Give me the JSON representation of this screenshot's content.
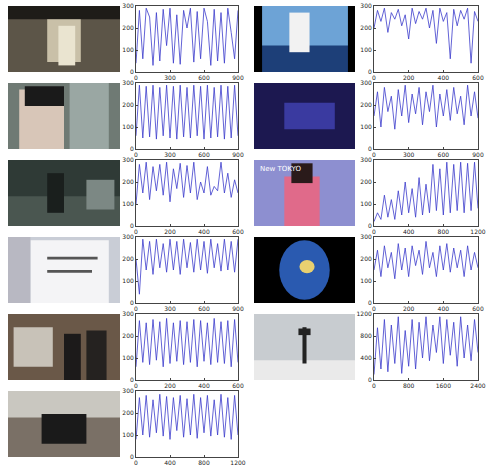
{
  "chart_data": [
    {
      "type": "line",
      "color": "#3b3bcc",
      "xlim": [
        0,
        900
      ],
      "xticks": [
        0,
        300,
        600,
        900
      ],
      "ylim": [
        0,
        300
      ],
      "yticks": [
        0,
        100,
        200,
        300
      ],
      "x": [
        0,
        30,
        60,
        90,
        120,
        150,
        180,
        210,
        240,
        270,
        300,
        330,
        360,
        390,
        420,
        450,
        480,
        510,
        540,
        570,
        600,
        630,
        660,
        690,
        720,
        750,
        780,
        810,
        840,
        870,
        900
      ],
      "values": [
        40,
        280,
        60,
        290,
        250,
        30,
        270,
        50,
        285,
        120,
        290,
        40,
        260,
        35,
        280,
        200,
        290,
        45,
        275,
        60,
        290,
        230,
        30,
        285,
        50,
        270,
        40,
        290,
        180,
        60,
        280
      ]
    },
    {
      "type": "line",
      "color": "#3b3bcc",
      "xlim": [
        0,
        900
      ],
      "xticks": [
        0,
        300,
        600,
        900
      ],
      "ylim": [
        0,
        300
      ],
      "yticks": [
        0,
        100,
        200,
        300
      ],
      "x": [
        0,
        30,
        60,
        90,
        120,
        150,
        180,
        210,
        240,
        270,
        300,
        330,
        360,
        390,
        420,
        450,
        480,
        510,
        540,
        570,
        600,
        630,
        660,
        690,
        720,
        750,
        780,
        810,
        840,
        870,
        900
      ],
      "values": [
        60,
        290,
        50,
        285,
        55,
        290,
        45,
        280,
        60,
        290,
        50,
        285,
        45,
        290,
        55,
        280,
        50,
        290,
        60,
        285,
        45,
        290,
        50,
        280,
        55,
        290,
        45,
        285,
        50,
        290,
        60
      ]
    },
    {
      "type": "line",
      "color": "#3b3bcc",
      "xlim": [
        0,
        600
      ],
      "xticks": [
        0,
        200,
        400,
        600
      ],
      "ylim": [
        0,
        300
      ],
      "yticks": [
        0,
        100,
        200,
        300
      ],
      "x": [
        0,
        20,
        40,
        60,
        80,
        100,
        120,
        140,
        160,
        180,
        200,
        220,
        240,
        260,
        280,
        300,
        320,
        340,
        360,
        380,
        400,
        420,
        440,
        460,
        480,
        500,
        520,
        540,
        560,
        580,
        600
      ],
      "values": [
        100,
        280,
        150,
        290,
        120,
        270,
        160,
        280,
        140,
        290,
        110,
        260,
        170,
        285,
        130,
        275,
        150,
        290,
        120,
        200,
        150,
        270,
        140,
        180,
        160,
        290,
        150,
        240,
        130,
        210,
        150
      ]
    },
    {
      "type": "line",
      "color": "#3b3bcc",
      "xlim": [
        0,
        900
      ],
      "xticks": [
        0,
        300,
        600,
        900
      ],
      "ylim": [
        0,
        300
      ],
      "yticks": [
        0,
        100,
        200,
        300
      ],
      "x": [
        0,
        30,
        60,
        90,
        120,
        150,
        180,
        210,
        240,
        270,
        300,
        330,
        360,
        390,
        420,
        450,
        480,
        510,
        540,
        570,
        600,
        630,
        660,
        690,
        720,
        750,
        780,
        810,
        840,
        870,
        900
      ],
      "values": [
        200,
        40,
        290,
        150,
        280,
        130,
        290,
        160,
        270,
        140,
        290,
        150,
        280,
        130,
        290,
        160,
        275,
        140,
        290,
        150,
        280,
        135,
        290,
        160,
        270,
        145,
        290,
        150,
        280,
        140,
        290
      ]
    },
    {
      "type": "line",
      "color": "#3b3bcc",
      "xlim": [
        0,
        600
      ],
      "xticks": [
        0,
        200,
        400,
        600
      ],
      "ylim": [
        0,
        300
      ],
      "yticks": [
        0,
        100,
        200,
        300
      ],
      "x": [
        0,
        20,
        40,
        60,
        80,
        100,
        120,
        140,
        160,
        180,
        200,
        220,
        240,
        260,
        280,
        300,
        320,
        340,
        360,
        380,
        400,
        420,
        440,
        460,
        480,
        500,
        520,
        540,
        560,
        580,
        600
      ],
      "values": [
        60,
        270,
        80,
        260,
        70,
        275,
        90,
        265,
        60,
        280,
        75,
        260,
        85,
        270,
        70,
        265,
        80,
        275,
        60,
        270,
        85,
        260,
        70,
        280,
        80,
        265,
        75,
        270,
        60,
        275,
        80
      ]
    },
    {
      "type": "line",
      "color": "#3b3bcc",
      "xlim": [
        0,
        1200
      ],
      "xticks": [
        0,
        400,
        800,
        1200
      ],
      "ylim": [
        0,
        300
      ],
      "yticks": [
        0,
        100,
        200,
        300
      ],
      "x": [
        0,
        40,
        80,
        120,
        160,
        200,
        240,
        280,
        320,
        360,
        400,
        440,
        480,
        520,
        560,
        600,
        640,
        680,
        720,
        760,
        800,
        840,
        880,
        920,
        960,
        1000,
        1040,
        1080,
        1120,
        1160,
        1200
      ],
      "values": [
        80,
        270,
        100,
        280,
        90,
        260,
        110,
        285,
        95,
        275,
        80,
        270,
        120,
        280,
        90,
        265,
        100,
        285,
        85,
        270,
        110,
        280,
        95,
        260,
        100,
        285,
        90,
        270,
        80,
        280,
        100
      ]
    },
    {
      "type": "line",
      "color": "#3b3bcc",
      "xlim": [
        0,
        600
      ],
      "xticks": [
        0,
        200,
        400,
        600
      ],
      "ylim": [
        0,
        300
      ],
      "yticks": [
        0,
        100,
        200,
        300
      ],
      "x": [
        0,
        20,
        40,
        60,
        80,
        100,
        120,
        140,
        160,
        180,
        200,
        220,
        240,
        260,
        280,
        300,
        320,
        340,
        360,
        380,
        400,
        420,
        440,
        460,
        480,
        500,
        520,
        540,
        560,
        580,
        600
      ],
      "values": [
        200,
        280,
        230,
        290,
        180,
        270,
        240,
        285,
        210,
        260,
        150,
        290,
        220,
        275,
        240,
        290,
        200,
        280,
        130,
        290,
        230,
        270,
        60,
        285,
        210,
        280,
        240,
        290,
        40,
        275,
        230
      ]
    },
    {
      "type": "line",
      "color": "#3b3bcc",
      "xlim": [
        0,
        900
      ],
      "xticks": [
        0,
        300,
        600,
        900
      ],
      "ylim": [
        0,
        300
      ],
      "yticks": [
        0,
        100,
        200,
        300
      ],
      "x": [
        0,
        30,
        60,
        90,
        120,
        150,
        180,
        210,
        240,
        270,
        300,
        330,
        360,
        390,
        420,
        450,
        480,
        510,
        540,
        570,
        600,
        630,
        660,
        690,
        720,
        750,
        780,
        810,
        840,
        870,
        900
      ],
      "values": [
        150,
        260,
        100,
        280,
        170,
        240,
        90,
        270,
        150,
        290,
        120,
        250,
        160,
        280,
        110,
        260,
        170,
        290,
        100,
        250,
        150,
        270,
        130,
        280,
        160,
        240,
        110,
        290,
        150,
        260,
        140
      ]
    },
    {
      "type": "line",
      "color": "#3b3bcc",
      "xlim": [
        0,
        1200
      ],
      "xticks": [
        0,
        400,
        800,
        1200
      ],
      "ylim": [
        0,
        300
      ],
      "yticks": [
        0,
        100,
        200,
        300
      ],
      "annotations": [
        "New TOKYO"
      ],
      "x": [
        0,
        40,
        80,
        120,
        160,
        200,
        240,
        280,
        320,
        360,
        400,
        440,
        480,
        520,
        560,
        600,
        640,
        680,
        720,
        760,
        800,
        840,
        880,
        920,
        960,
        1000,
        1040,
        1080,
        1120,
        1160,
        1200
      ],
      "values": [
        20,
        60,
        30,
        140,
        40,
        120,
        30,
        160,
        50,
        200,
        60,
        170,
        40,
        220,
        50,
        190,
        60,
        280,
        70,
        260,
        50,
        290,
        60,
        280,
        70,
        290,
        60,
        285,
        70,
        290,
        80
      ]
    },
    {
      "type": "line",
      "color": "#3b3bcc",
      "xlim": [
        0,
        600
      ],
      "xticks": [
        0,
        200,
        400,
        600
      ],
      "ylim": [
        0,
        300
      ],
      "yticks": [
        0,
        100,
        200,
        300
      ],
      "x": [
        0,
        20,
        40,
        60,
        80,
        100,
        120,
        140,
        160,
        180,
        200,
        220,
        240,
        260,
        280,
        300,
        320,
        340,
        360,
        380,
        400,
        420,
        440,
        460,
        480,
        500,
        520,
        540,
        560,
        580,
        600
      ],
      "values": [
        150,
        240,
        120,
        260,
        160,
        230,
        110,
        270,
        150,
        250,
        120,
        260,
        170,
        240,
        130,
        280,
        160,
        230,
        120,
        260,
        150,
        270,
        140,
        250,
        160,
        240,
        120,
        260,
        150,
        230,
        160
      ]
    },
    {
      "type": "line",
      "color": "#3b3bcc",
      "xlim": [
        0,
        2400
      ],
      "xticks": [
        0,
        800,
        1600,
        2400
      ],
      "ylim": [
        0,
        1200
      ],
      "yticks": [
        0,
        400,
        800,
        1200
      ],
      "x": [
        0,
        80,
        160,
        240,
        320,
        400,
        480,
        560,
        640,
        720,
        800,
        880,
        960,
        1040,
        1120,
        1200,
        1280,
        1360,
        1440,
        1520,
        1600,
        1680,
        1760,
        1840,
        1920,
        2000,
        2080,
        2160,
        2240,
        2320,
        2400
      ],
      "values": [
        100,
        950,
        200,
        1100,
        150,
        1000,
        300,
        1150,
        120,
        900,
        250,
        1100,
        200,
        1050,
        400,
        1150,
        350,
        1000,
        500,
        1150,
        300,
        1100,
        450,
        1050,
        250,
        1150,
        400,
        1000,
        350,
        1100,
        500
      ]
    }
  ]
}
